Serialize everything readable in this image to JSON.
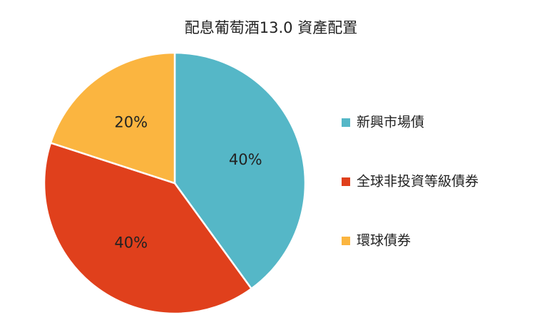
{
  "chart_data": {
    "type": "pie",
    "title": "配息葡萄酒13.0 資產配置",
    "categories": [
      "新興市場債",
      "全球非投資等級債券",
      "環球債券"
    ],
    "values": [
      40,
      40,
      20
    ],
    "value_labels": [
      "40%",
      "40%",
      "20%"
    ],
    "colors": [
      "#55b7c7",
      "#e0401c",
      "#fbb540"
    ]
  }
}
